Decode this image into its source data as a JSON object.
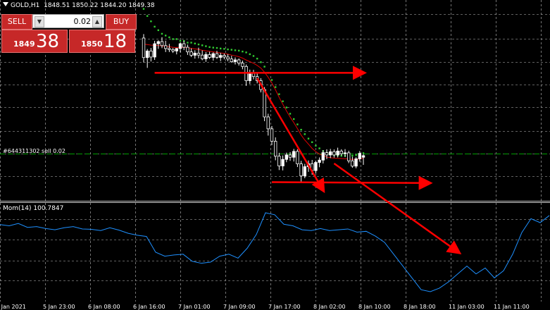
{
  "header": {
    "symbol": "GOLD,H1",
    "ohlc": "1848.51 1850.22 1844.20 1849.38"
  },
  "trade_panel": {
    "sell_label": "SELL",
    "buy_label": "BUY",
    "lot_value": "0.02",
    "sell_small": "1849",
    "sell_big": "38",
    "buy_small": "1850",
    "buy_big": "18"
  },
  "order_line_label": "#644311302 sell 0.02",
  "indicator": {
    "label": "Mom(14) 100.7847"
  },
  "time_axis": [
    "5 Jan 2021",
    "5 Jan 23:00",
    "6 Jan 08:00",
    "6 Jan 16:00",
    "7 Jan 01:00",
    "7 Jan 09:00",
    "7 Jan 17:00",
    "8 Jan 02:00",
    "8 Jan 10:00",
    "8 Jan 18:00",
    "11 Jan 03:00",
    "11 Jan 11:00"
  ],
  "colors": {
    "background": "#000000",
    "grid": "#c0c0c0",
    "bull_candle": "#ffffff",
    "bear_candle": "#000000",
    "ma": "#e00000",
    "sar": "#32cd32",
    "momentum": "#1e90ff",
    "annotation": "#ff0000",
    "order_line": "#00a000"
  },
  "chart_data": {
    "type": "candlestick",
    "price_series": {
      "name": "GOLD,H1",
      "ohlc": [
        [
          1915.6,
          1917.8,
          1901.8,
          1904.6
        ],
        [
          1904.6,
          1909.4,
          1898.8,
          1908.3
        ],
        [
          1908.3,
          1910.0,
          1902.4,
          1904.9
        ],
        [
          1904.9,
          1914.0,
          1903.3,
          1912.4
        ],
        [
          1912.4,
          1914.3,
          1909.5,
          1913.6
        ],
        [
          1913.6,
          1916.1,
          1909.9,
          1911.3
        ],
        [
          1911.3,
          1914.1,
          1907.7,
          1909.7
        ],
        [
          1909.7,
          1912.3,
          1907.7,
          1909.1
        ],
        [
          1909.1,
          1910.0,
          1907.2,
          1908.3
        ],
        [
          1908.3,
          1910.0,
          1906.4,
          1909.7
        ],
        [
          1909.7,
          1913.0,
          1907.5,
          1912.4
        ],
        [
          1912.4,
          1914.0,
          1908.8,
          1910.4
        ],
        [
          1910.4,
          1911.9,
          1906.1,
          1907.8
        ],
        [
          1907.8,
          1909.8,
          1904.9,
          1905.9
        ],
        [
          1905.9,
          1908.7,
          1904.0,
          1907.1
        ],
        [
          1907.1,
          1910.2,
          1904.2,
          1906.0
        ],
        [
          1906.0,
          1908.6,
          1903.1,
          1903.9
        ],
        [
          1903.9,
          1907.7,
          1902.2,
          1906.3
        ],
        [
          1906.3,
          1907.9,
          1903.9,
          1904.7
        ],
        [
          1904.7,
          1907.6,
          1902.9,
          1906.8
        ],
        [
          1906.8,
          1908.4,
          1903.8,
          1904.7
        ],
        [
          1904.7,
          1907.3,
          1902.6,
          1905.8
        ],
        [
          1905.8,
          1906.9,
          1903.6,
          1904.9
        ],
        [
          1904.9,
          1906.5,
          1902.5,
          1903.8
        ],
        [
          1903.8,
          1905.6,
          1901.7,
          1902.3
        ],
        [
          1902.3,
          1904.7,
          1900.7,
          1903.3
        ],
        [
          1903.3,
          1904.1,
          1900.1,
          1901.5
        ],
        [
          1901.5,
          1902.9,
          1898.0,
          1899.6
        ],
        [
          1899.6,
          1900.7,
          1888.7,
          1891.6
        ],
        [
          1891.6,
          1897.8,
          1889.7,
          1895.7
        ],
        [
          1895.7,
          1897.7,
          1892.3,
          1893.9
        ],
        [
          1893.9,
          1895.7,
          1890.1,
          1891.6
        ],
        [
          1891.6,
          1893.0,
          1885.0,
          1886.6
        ],
        [
          1886.6,
          1888.0,
          1868.8,
          1871.2
        ],
        [
          1871.2,
          1873.0,
          1860.7,
          1864.5
        ],
        [
          1864.5,
          1866.1,
          1855.3,
          1857.5
        ],
        [
          1857.5,
          1859.7,
          1846.8,
          1849.1
        ],
        [
          1849.1,
          1851.0,
          1841.3,
          1843.6
        ],
        [
          1843.6,
          1849.5,
          1841.1,
          1847.3
        ],
        [
          1847.3,
          1851.1,
          1845.7,
          1849.8
        ],
        [
          1849.8,
          1851.4,
          1846.5,
          1848.5
        ],
        [
          1848.5,
          1853.2,
          1846.1,
          1851.8
        ],
        [
          1851.8,
          1853.0,
          1843.0,
          1844.8
        ],
        [
          1844.8,
          1846.5,
          1834.7,
          1838.0
        ],
        [
          1838.0,
          1844.8,
          1836.7,
          1843.2
        ],
        [
          1843.2,
          1846.7,
          1840.3,
          1844.9
        ],
        [
          1844.9,
          1847.0,
          1838.7,
          1841.0
        ],
        [
          1841.0,
          1846.6,
          1839.5,
          1845.6
        ],
        [
          1845.6,
          1848.4,
          1842.9,
          1846.9
        ],
        [
          1846.9,
          1852.5,
          1845.0,
          1851.1
        ],
        [
          1851.1,
          1853.0,
          1847.5,
          1849.8
        ],
        [
          1849.8,
          1853.2,
          1848.0,
          1851.6
        ],
        [
          1851.6,
          1852.9,
          1848.3,
          1849.8
        ],
        [
          1849.8,
          1853.9,
          1848.4,
          1852.0
        ],
        [
          1852.0,
          1853.0,
          1849.5,
          1850.5
        ],
        [
          1850.5,
          1853.1,
          1848.8,
          1851.0
        ],
        [
          1851.0,
          1852.2,
          1845.2,
          1846.5
        ],
        [
          1846.5,
          1848.8,
          1842.6,
          1843.5
        ],
        [
          1843.5,
          1848.5,
          1842.3,
          1847.6
        ],
        [
          1847.6,
          1852.0,
          1846.0,
          1850.7
        ],
        [
          1848.5,
          1850.2,
          1844.2,
          1849.4
        ]
      ],
      "ma_values": [
        1912.1,
        1911.9,
        1911.6,
        1911.5,
        1911.4,
        1911.2,
        1911.0,
        1910.7,
        1910.4,
        1910.2,
        1910.3,
        1910.4,
        1910.2,
        1909.8,
        1909.5,
        1909.2,
        1908.7,
        1908.4,
        1908.1,
        1907.8,
        1907.5,
        1907.2,
        1906.9,
        1906.5,
        1906.0,
        1905.6,
        1905.1,
        1904.3,
        1903.2,
        1902.3,
        1901.4,
        1900.2,
        1898.7,
        1896.4,
        1893.5,
        1890.3,
        1886.5,
        1882.2,
        1878.3,
        1874.6,
        1871.1,
        1868.0,
        1864.6,
        1861.0,
        1858.2,
        1855.9,
        1853.5,
        1851.7,
        1850.3,
        1849.5,
        1848.6,
        1848.3,
        1848.0,
        1847.9,
        1847.8,
        1847.7,
        1847.5,
        1847.3,
        1847.4,
        1847.6,
        1847.9
      ],
      "sar_values": [
        1932,
        1928,
        1925,
        1922,
        1920,
        1918,
        1917,
        1916,
        1915,
        1915,
        1914,
        1914,
        1913,
        1913,
        1912.5,
        1912,
        1911.5,
        1911,
        1910.5,
        1910.2,
        1910,
        1909.7,
        1909.5,
        1909.2,
        1909,
        1908.7,
        1908.5,
        1908,
        1907.5,
        1906.5,
        1905.5,
        1904,
        1902,
        1899.5,
        1896,
        1892,
        1888,
        1884,
        1880,
        1876.5,
        1873,
        1870,
        1867,
        1864,
        1861.5,
        1859,
        1857,
        1855,
        1853.5,
        1852,
        1851,
        1850.3,
        1849.8,
        1849.5,
        1849.3,
        1849.2,
        1849.2,
        1849.4,
        1849.7,
        1850.2,
        1850.8
      ],
      "y_range": [
        1824,
        1937
      ]
    },
    "momentum_series": {
      "name": "Mom(14)",
      "values": [
        100.55,
        100.52,
        100.58,
        100.48,
        100.5,
        100.45,
        100.42,
        100.47,
        100.5,
        100.44,
        100.43,
        100.4,
        100.47,
        100.41,
        100.33,
        100.28,
        100.25,
        99.85,
        99.75,
        99.78,
        99.8,
        99.62,
        99.57,
        99.6,
        99.75,
        99.8,
        99.7,
        99.95,
        100.3,
        100.85,
        100.8,
        100.56,
        100.52,
        100.42,
        100.4,
        100.45,
        100.4,
        100.42,
        100.44,
        100.36,
        100.38,
        100.26,
        100.1,
        99.8,
        99.5,
        99.2,
        98.9,
        98.85,
        98.94,
        99.1,
        99.3,
        99.5,
        99.3,
        99.45,
        99.2,
        99.38,
        99.8,
        100.35,
        100.7,
        100.6,
        100.78
      ],
      "y_range": [
        98.6,
        101.1
      ]
    },
    "annotations": [
      {
        "type": "arrow-horizontal",
        "from": [
          3,
          1896
        ],
        "to": [
          60,
          1896
        ]
      },
      {
        "type": "arrow-diagonal",
        "from": [
          31,
          1893
        ],
        "to": [
          49,
          1830
        ]
      },
      {
        "type": "arrow-horizontal",
        "from": [
          35,
          1834.5
        ],
        "to": [
          78,
          1834
        ]
      },
      {
        "type": "arrow-diagonal",
        "from": [
          52,
          1845
        ],
        "to": [
          86,
          1795
        ]
      }
    ]
  }
}
